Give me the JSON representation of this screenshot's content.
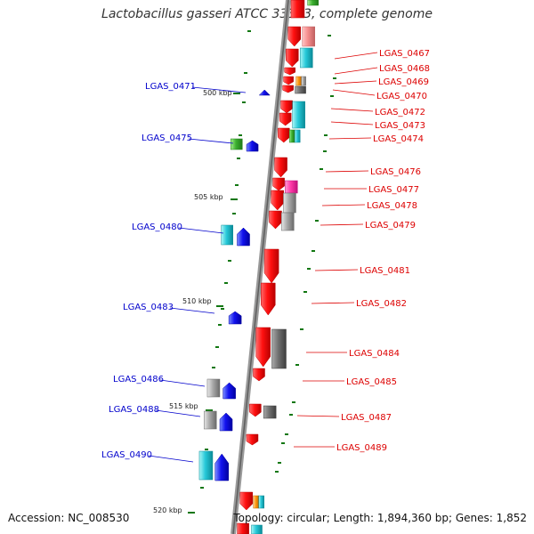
{
  "title": "Lactobacillus gasseri ATCC 33323, complete genome",
  "accession_text": "Accession: NC_008530",
  "topology_text": "Topology: circular; Length: 1,894,360 bp; Genes: 1,852",
  "colors": {
    "backbone": "#888888",
    "forward_label": "#dd0000",
    "reverse_label": "#0000cc",
    "kbp_label": "#222222",
    "tick": "#117711"
  },
  "scale": {
    "labels": [
      "500 kbp",
      "505 kbp",
      "510 kbp",
      "515 kbp",
      "520 kbp"
    ]
  },
  "forward_genes": [
    "LGAS_0467",
    "LGAS_0468",
    "LGAS_0469",
    "LGAS_0470",
    "LGAS_0472",
    "LGAS_0473",
    "LGAS_0474",
    "LGAS_0476",
    "LGAS_0477",
    "LGAS_0478",
    "LGAS_0479",
    "LGAS_0481",
    "LGAS_0482",
    "LGAS_0484",
    "LGAS_0485",
    "LGAS_0487",
    "LGAS_0489"
  ],
  "reverse_genes": [
    "LGAS_0471",
    "LGAS_0475",
    "LGAS_0480",
    "LGAS_0483",
    "LGAS_0486",
    "LGAS_0488",
    "LGAS_0490"
  ],
  "feature_colors": [
    "red",
    "pink",
    "cyan",
    "orange",
    "gray",
    "green",
    "blue",
    "magenta"
  ]
}
